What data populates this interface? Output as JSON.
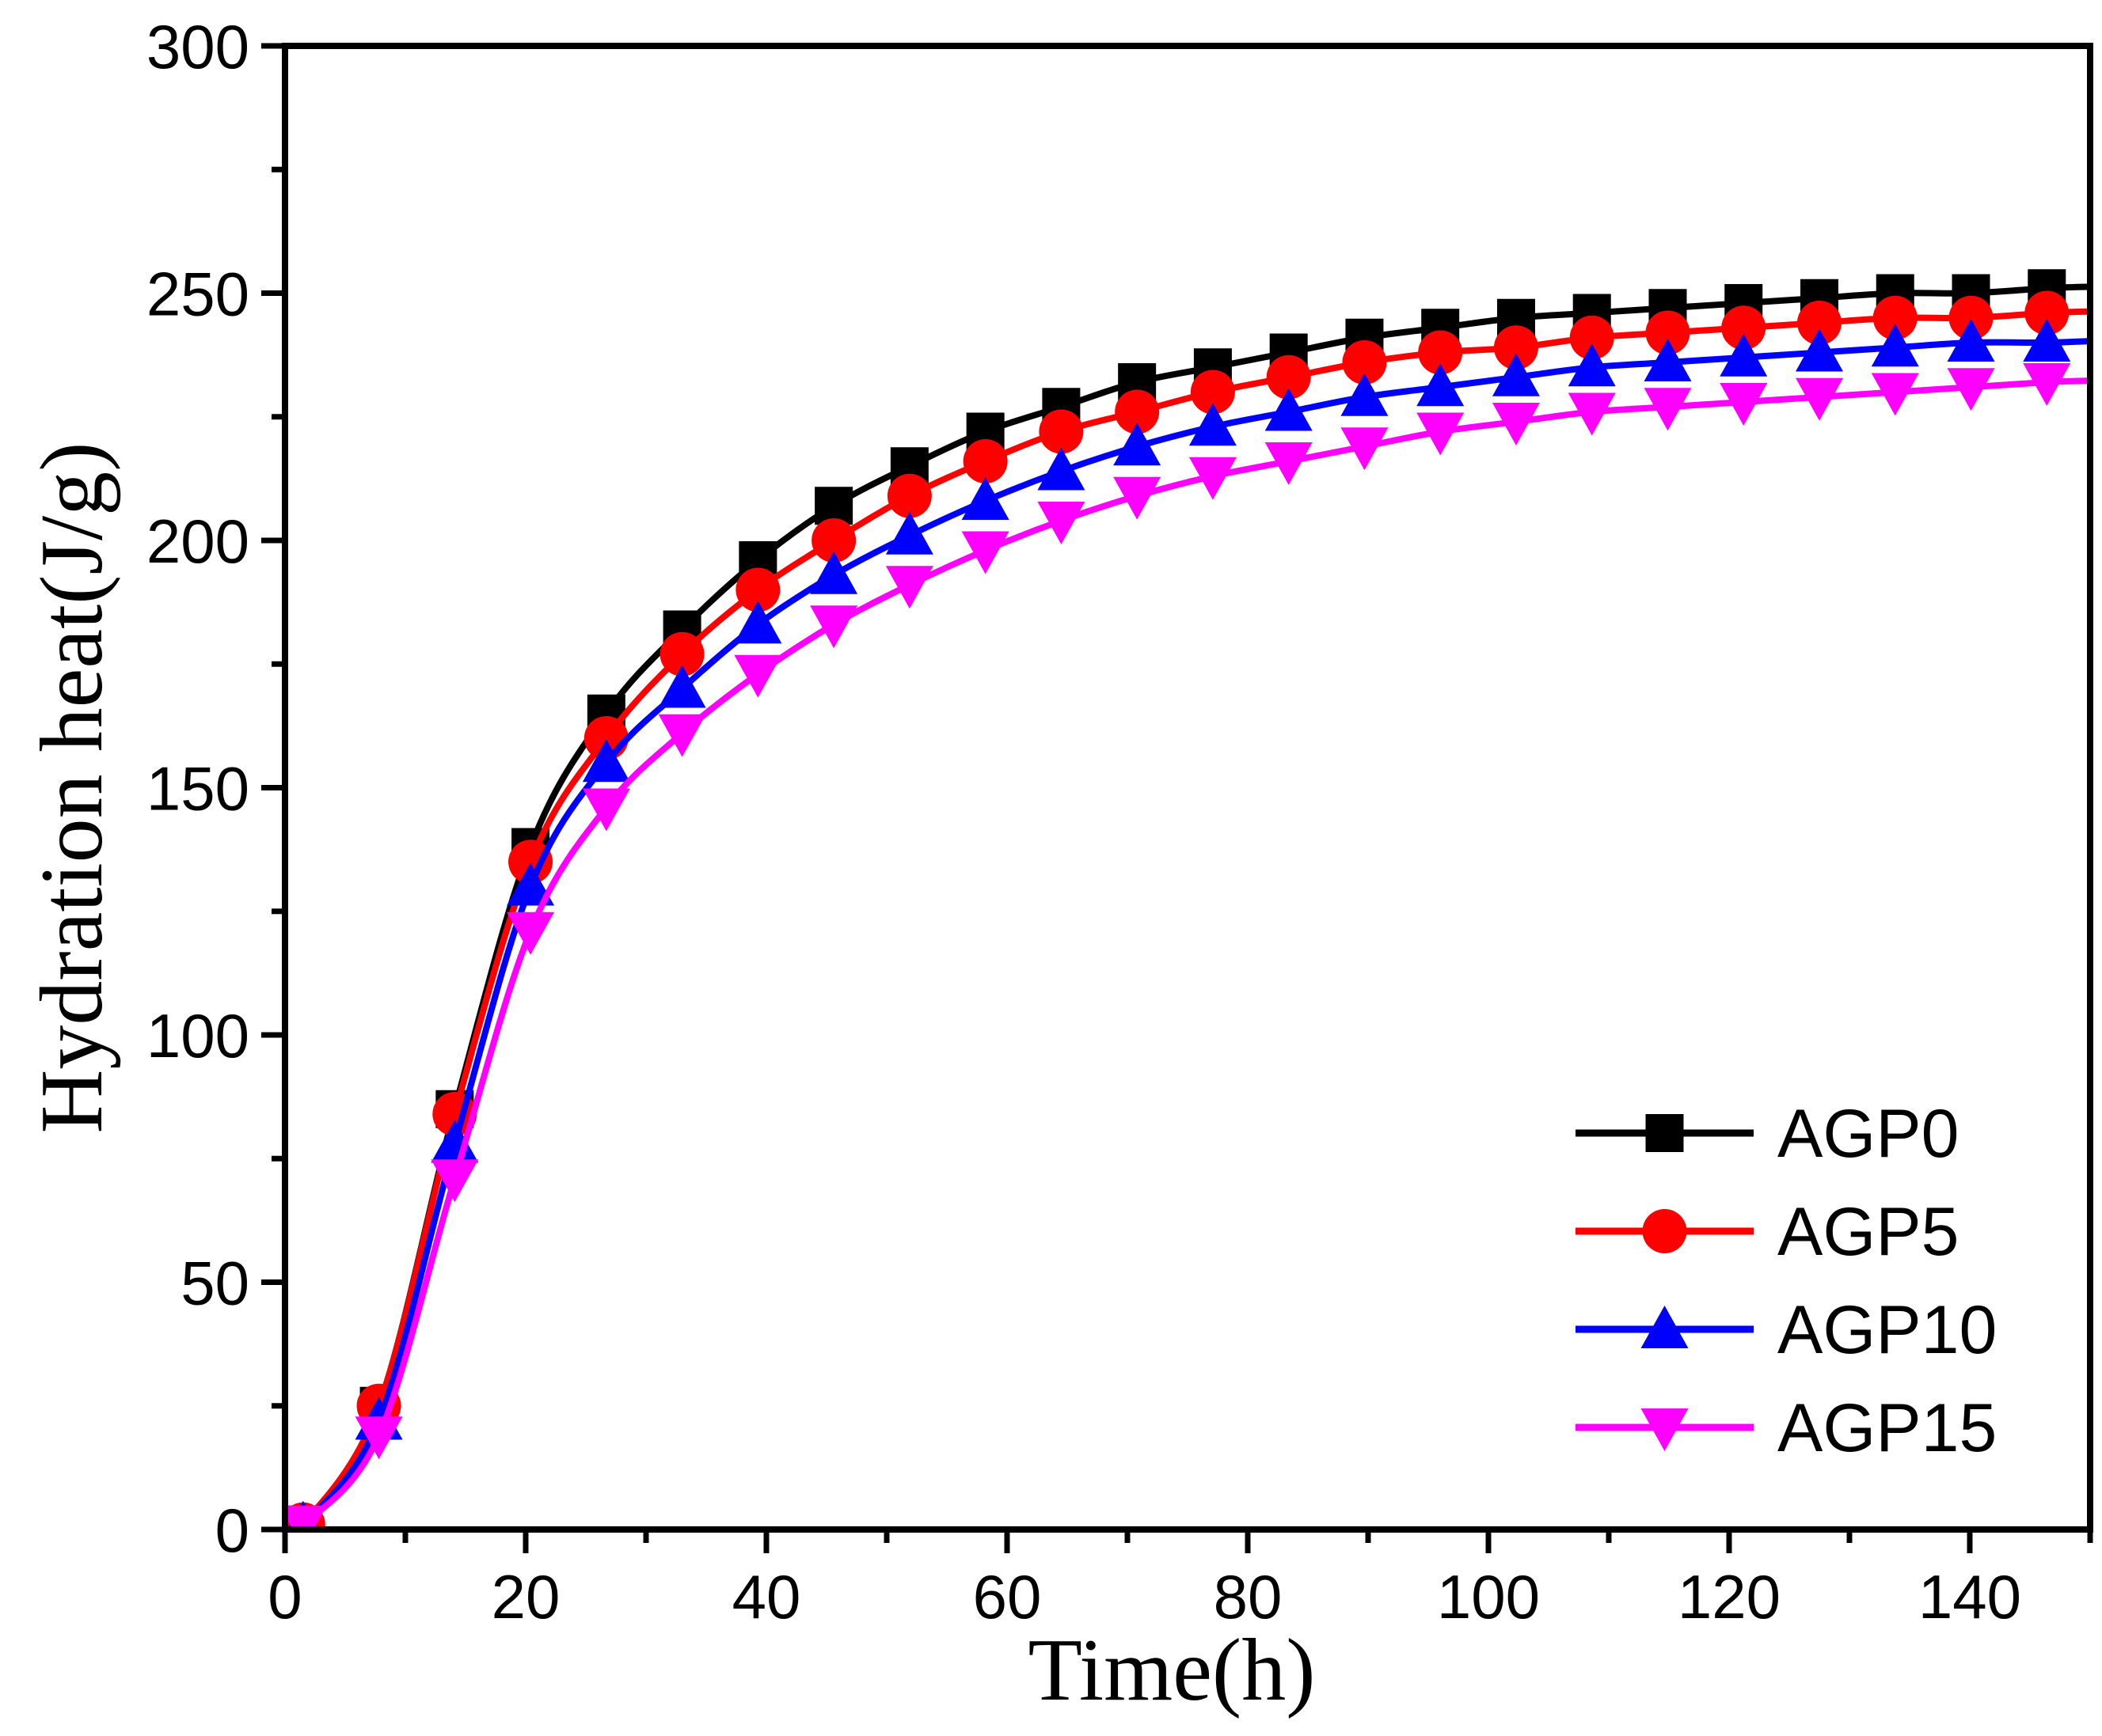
{
  "chart_data": {
    "type": "line",
    "title": "",
    "xlabel": "Time(h)",
    "ylabel": "Hydration heat(J/g)",
    "xlim": [
      0,
      150
    ],
    "ylim": [
      0,
      300
    ],
    "xticks": [
      0,
      20,
      40,
      60,
      80,
      100,
      120,
      140
    ],
    "yticks": [
      0,
      50,
      100,
      150,
      200,
      250,
      300
    ],
    "grid": false,
    "legend_position": "bottom-right",
    "x": [
      1.5,
      7.8,
      14.1,
      20.4,
      26.7,
      33.0,
      39.3,
      45.6,
      51.9,
      58.2,
      64.5,
      70.8,
      77.1,
      83.4,
      89.7,
      96.0,
      102.3,
      108.6,
      114.9,
      121.2,
      127.5,
      133.8,
      140.1,
      146.4
    ],
    "series": [
      {
        "name": "AGP0",
        "color": "#000000",
        "marker": "square",
        "values": [
          1,
          25,
          85,
          138,
          165,
          182,
          196,
          207,
          215,
          222,
          227,
          232,
          235,
          238,
          241,
          243,
          245,
          246,
          247,
          248,
          249,
          250,
          250,
          251
        ]
      },
      {
        "name": "AGP5",
        "color": "#ff0000",
        "marker": "circle",
        "values": [
          1,
          25,
          84,
          135,
          160,
          177,
          190,
          200,
          209,
          216,
          222,
          226,
          230,
          233,
          236,
          238,
          239,
          241,
          242,
          243,
          244,
          245,
          245,
          246
        ]
      },
      {
        "name": "AGP10",
        "color": "#0000ff",
        "marker": "triangle-up",
        "values": [
          1,
          22,
          78,
          130,
          155,
          170,
          183,
          193,
          201,
          208,
          214,
          219,
          223,
          226,
          229,
          231,
          233,
          235,
          236,
          237,
          238,
          239,
          240,
          240
        ]
      },
      {
        "name": "AGP15",
        "color": "#ff00ff",
        "marker": "triangle-down",
        "values": [
          1,
          19,
          71,
          121,
          146,
          161,
          173,
          183,
          191,
          198,
          204,
          209,
          213,
          216,
          219,
          222,
          224,
          226,
          227,
          228,
          229,
          230,
          231,
          232
        ]
      }
    ]
  }
}
